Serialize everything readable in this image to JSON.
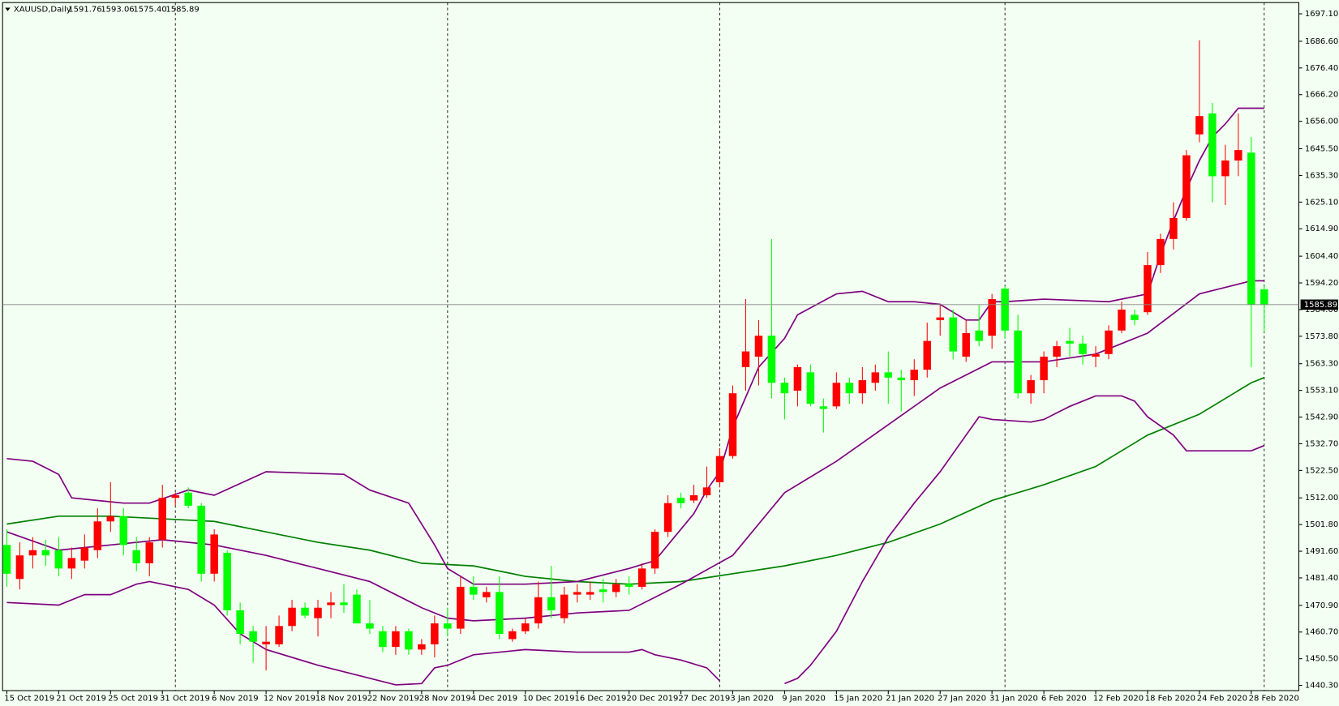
{
  "chart_data": {
    "type": "candlestick",
    "title": "XAUUSD,Daily",
    "title_values": [
      "1591.76",
      "1593.06",
      "1575.40",
      "1585.89"
    ],
    "categories": [
      "15 Oct 2019",
      null,
      null,
      null,
      "21 Oct 2019",
      null,
      null,
      null,
      "25 Oct 2019",
      null,
      null,
      null,
      "31 Oct 2019",
      null,
      null,
      null,
      "6 Nov 2019",
      null,
      null,
      null,
      "12 Nov 2019",
      null,
      null,
      null,
      "18 Nov 2019",
      null,
      null,
      null,
      "22 Nov 2019",
      null,
      null,
      null,
      "28 Nov 2019",
      null,
      null,
      null,
      "4 Dec 2019",
      null,
      null,
      null,
      "10 Dec 2019",
      null,
      null,
      null,
      "16 Dec 2019",
      null,
      null,
      null,
      "20 Dec 2019",
      null,
      null,
      null,
      "27 Dec 2019",
      null,
      null,
      null,
      "3 Jan 2020",
      null,
      null,
      null,
      "9 Jan 2020",
      null,
      null,
      null,
      "15 Jan 2020",
      null,
      null,
      null,
      "21 Jan 2020",
      null,
      null,
      null,
      "27 Jan 2020",
      null,
      null,
      null,
      "31 Jan 2020",
      null,
      null,
      null,
      "6 Feb 2020",
      null,
      null,
      null,
      "12 Feb 2020",
      null,
      null,
      null,
      "18 Feb 2020",
      null,
      null,
      null,
      "24 Feb 2020",
      null,
      null,
      null,
      "28 Feb 2020",
      null
    ],
    "open": [
      1494,
      1481,
      1490,
      1492,
      1492,
      1485,
      1488,
      1492,
      1503,
      1505,
      1492,
      1487,
      1496,
      1512,
      1514,
      1509,
      1483,
      1491,
      1469,
      1461,
      1456,
      1456,
      1463,
      1470,
      1466,
      1471,
      1472,
      1475,
      1464,
      1461,
      1455,
      1461,
      1454,
      1456,
      1464,
      1462,
      1478,
      1474,
      1476,
      1458,
      1461,
      1464,
      1474,
      1466,
      1475,
      1475,
      1477,
      1476,
      1479,
      1478,
      1485,
      1499,
      1512,
      1511,
      1513,
      1518,
      1528,
      1562,
      1566,
      1574,
      1556,
      1553,
      1560,
      1547,
      1547,
      1556,
      1552,
      1556,
      1560,
      1558,
      1557,
      1561,
      1580,
      1581,
      1566,
      1576,
      1574,
      1592,
      1576,
      1552,
      1557,
      1566,
      1572,
      1571,
      1566,
      1567,
      1576,
      1582,
      1583,
      1601,
      1611,
      1619,
      1651,
      1659,
      1635,
      1641,
      1644,
      1591.76
    ],
    "high": [
      1500,
      1495,
      1497,
      1496,
      1497,
      1493,
      1498,
      1508,
      1518,
      1508,
      1497,
      1497,
      1517,
      1514,
      1516,
      1510,
      1500,
      1492,
      1472,
      1463,
      1463,
      1467,
      1473,
      1472,
      1473,
      1476,
      1479,
      1477,
      1473,
      1463,
      1463,
      1462,
      1458,
      1467,
      1470,
      1482,
      1482,
      1478,
      1482,
      1462,
      1466,
      1480,
      1486,
      1478,
      1479,
      1480,
      1481,
      1481,
      1482,
      1487,
      1500,
      1513,
      1514,
      1517,
      1524,
      1531,
      1555,
      1588,
      1580,
      1611,
      1558,
      1563,
      1563,
      1550,
      1560,
      1558,
      1562,
      1563,
      1568,
      1561,
      1565,
      1579,
      1586,
      1584,
      1580,
      1586,
      1590,
      1593,
      1582,
      1559,
      1568,
      1572,
      1577,
      1574,
      1570,
      1578,
      1587,
      1584,
      1606,
      1613,
      1625,
      1645,
      1687,
      1663,
      1647,
      1659,
      1650,
      1593.06
    ],
    "low": [
      1478,
      1477,
      1485,
      1486,
      1482,
      1481,
      1485,
      1489,
      1499,
      1490,
      1484,
      1482,
      1493,
      1509,
      1508,
      1480,
      1480,
      1467,
      1456,
      1449,
      1446,
      1455,
      1461,
      1466,
      1459,
      1466,
      1468,
      1464,
      1460,
      1453,
      1452,
      1452,
      1452,
      1451,
      1459,
      1460,
      1473,
      1472,
      1458,
      1457,
      1460,
      1462,
      1466,
      1464,
      1472,
      1473,
      1472,
      1474,
      1475,
      1477,
      1483,
      1497,
      1508,
      1510,
      1512,
      1516,
      1527,
      1553,
      1555,
      1550,
      1542,
      1547,
      1547,
      1537,
      1546,
      1548,
      1548,
      1553,
      1548,
      1545,
      1551,
      1558,
      1574,
      1565,
      1564,
      1570,
      1569,
      1573,
      1550,
      1548,
      1552,
      1562,
      1566,
      1563,
      1562,
      1565,
      1575,
      1578,
      1582,
      1598,
      1607,
      1618,
      1648,
      1625,
      1624,
      1635,
      1562,
      1575.4
    ],
    "close": [
      1483,
      1490,
      1492,
      1490,
      1485,
      1489,
      1493,
      1503,
      1505,
      1494,
      1487,
      1495,
      1512,
      1513,
      1509,
      1483,
      1498,
      1469,
      1460,
      1457,
      1457,
      1463,
      1470,
      1467,
      1470,
      1472,
      1471,
      1464,
      1462,
      1455,
      1461,
      1454,
      1456,
      1464,
      1462,
      1478,
      1475,
      1476,
      1460,
      1461,
      1464,
      1474,
      1469,
      1475,
      1476,
      1476,
      1476,
      1479,
      1478,
      1485,
      1499,
      1510,
      1510,
      1513,
      1516,
      1528,
      1552,
      1568,
      1574,
      1556,
      1552,
      1562,
      1548,
      1546,
      1556,
      1552,
      1557,
      1560,
      1558,
      1557,
      1561,
      1572,
      1581,
      1568,
      1575,
      1572,
      1588,
      1576,
      1552,
      1557,
      1566,
      1570,
      1571,
      1567,
      1567,
      1576,
      1584,
      1580,
      1601,
      1611,
      1619,
      1643,
      1658,
      1635,
      1641,
      1645,
      1586,
      1585.89
    ],
    "up_color": "#ff0000",
    "down_color": "#00ff00",
    "lines": [
      {
        "color": "#008000",
        "x": [
          0,
          4,
          8,
          12,
          16,
          20,
          24,
          28,
          32,
          36,
          40,
          44,
          48,
          52,
          56,
          60,
          64,
          68,
          72,
          76,
          80,
          84,
          88,
          92,
          96,
          97
        ],
        "values": [
          1502,
          1505,
          1505,
          1504,
          1503,
          1499,
          1495,
          1492,
          1487,
          1486,
          1482,
          1480,
          1479,
          1480,
          1483,
          1486,
          1490,
          1495,
          1502,
          1511,
          1517,
          1524,
          1536,
          1544,
          1556,
          1558
        ]
      },
      {
        "color": "#800080",
        "x": [
          0,
          4,
          8,
          12,
          16,
          20,
          24,
          28,
          32,
          34,
          36,
          40,
          44,
          48,
          52,
          56,
          60,
          64,
          68,
          72,
          76,
          80,
          84,
          88,
          92,
          96,
          97
        ],
        "values": [
          1499,
          1492,
          1494,
          1496,
          1494,
          1490,
          1485,
          1480,
          1470,
          1466,
          1465,
          1466,
          1468,
          1469,
          1479,
          1490,
          1514,
          1526,
          1540,
          1554,
          1564,
          1564,
          1567,
          1575,
          1590,
          1595,
          1595
        ]
      },
      {
        "color": "#800080",
        "x": [
          0,
          2,
          4,
          5,
          9,
          11,
          14,
          16,
          20,
          26,
          28,
          31,
          33,
          34,
          36,
          40,
          44,
          48,
          50,
          51,
          53,
          54,
          55,
          56,
          58,
          60,
          61,
          64,
          66,
          68,
          70,
          72,
          74,
          75,
          76,
          77,
          80,
          85,
          88,
          89,
          90,
          91,
          92,
          93,
          94,
          95,
          97
        ],
        "values": [
          1527,
          1526,
          1521,
          1512,
          1510,
          1510,
          1515,
          1513,
          1522,
          1521,
          1515,
          1510,
          1494,
          1485,
          1479,
          1479,
          1480,
          1485,
          1488,
          1494,
          1506,
          1515,
          1522,
          1539,
          1562,
          1573,
          1582,
          1590,
          1591,
          1587,
          1587,
          1586,
          1580,
          1580,
          1587,
          1587,
          1588,
          1587,
          1590,
          1605,
          1618,
          1630,
          1641,
          1650,
          1655,
          1661,
          1661
        ]
      },
      {
        "color": "#800080",
        "x": [
          0,
          4,
          6,
          8,
          10,
          11,
          12,
          14,
          16,
          18,
          20,
          24,
          28,
          30,
          32,
          33,
          34,
          36,
          40,
          44,
          48,
          49,
          50,
          52,
          54,
          55,
          57,
          60,
          61,
          62,
          64,
          66,
          68,
          70,
          72,
          74,
          75,
          76,
          79,
          80,
          82,
          84,
          86,
          87,
          88,
          90,
          91,
          93,
          96,
          97
        ],
        "values": [
          1472,
          1471,
          1475,
          1475,
          1479,
          1480,
          1479,
          1477,
          1471,
          1460,
          1454,
          1448,
          1443,
          1440.5,
          1441,
          1447,
          1448,
          1452,
          1454,
          1453,
          1453,
          1454,
          1452,
          1450,
          1447,
          1442,
          null,
          1441,
          1443,
          1448,
          1461,
          1480,
          1497,
          1510,
          1522,
          1536,
          1543,
          1542,
          1541,
          1542,
          1547,
          1551,
          1551,
          1549,
          1543,
          1536,
          1530,
          1530,
          1530,
          1532
        ]
      }
    ],
    "ylim": [
      1438.3,
      1701.4
    ],
    "yticks": [
      {
        "value": 1697.1,
        "label": "1697.10"
      },
      {
        "value": 1686.6,
        "label": "1686.60"
      },
      {
        "value": 1676.4,
        "label": "1676.40"
      },
      {
        "value": 1666.2,
        "label": "1666.20"
      },
      {
        "value": 1656,
        "label": "1656.00"
      },
      {
        "value": 1645.5,
        "label": "1645.50"
      },
      {
        "value": 1635.3,
        "label": "1635.30"
      },
      {
        "value": 1625.1,
        "label": "1625.10"
      },
      {
        "value": 1614.9,
        "label": "1614.90"
      },
      {
        "value": 1604.4,
        "label": "1604.40"
      },
      {
        "value": 1594.2,
        "label": "1594.20"
      },
      {
        "value": 1584,
        "label": "1584.00"
      },
      {
        "value": 1573.8,
        "label": "1573.80"
      },
      {
        "value": 1563.3,
        "label": "1563.30"
      },
      {
        "value": 1553.1,
        "label": "1553.10"
      },
      {
        "value": 1542.9,
        "label": "1542.90"
      },
      {
        "value": 1532.7,
        "label": "1532.70"
      },
      {
        "value": 1522.5,
        "label": "1522.50"
      },
      {
        "value": 1512,
        "label": "1512.00"
      },
      {
        "value": 1501.8,
        "label": "1501.80"
      },
      {
        "value": 1491.6,
        "label": "1491.60"
      },
      {
        "value": 1481.4,
        "label": "1481.40"
      },
      {
        "value": 1470.9,
        "label": "1470.90"
      },
      {
        "value": 1460.7,
        "label": "1460.70"
      },
      {
        "value": 1450.5,
        "label": "1450.50"
      },
      {
        "value": 1440.3,
        "label": "1440.30"
      }
    ],
    "grid": false
  }
}
